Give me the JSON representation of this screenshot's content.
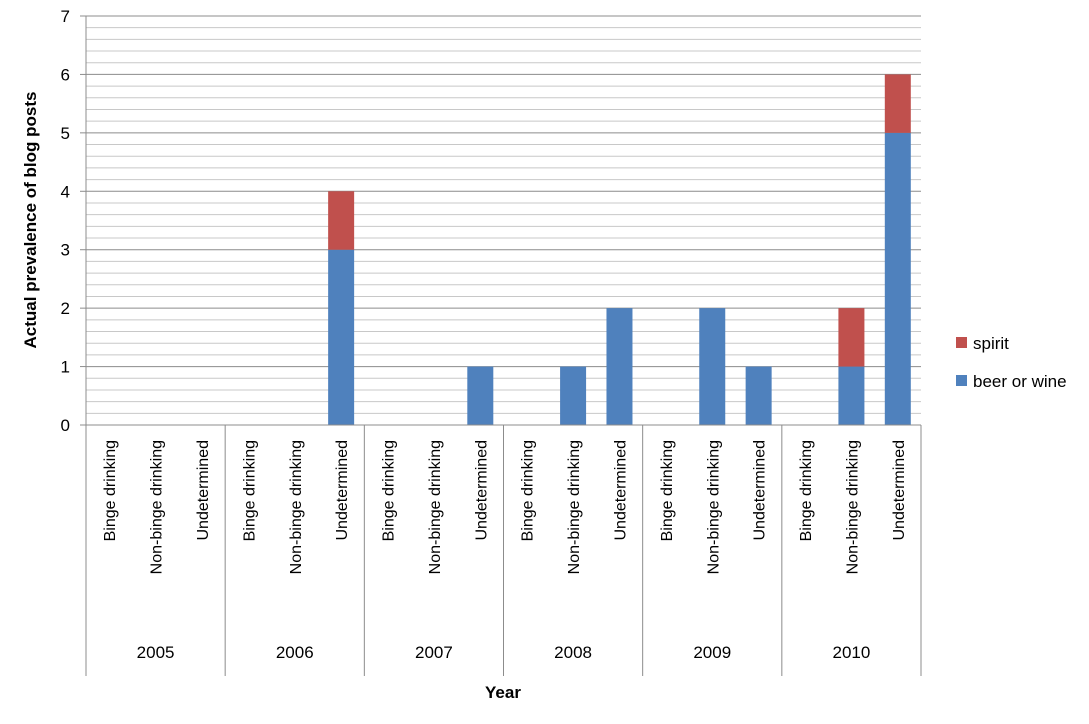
{
  "chart_data": {
    "type": "bar",
    "stacked": true,
    "title": "",
    "xlabel": "Year",
    "ylabel": "Actual prevalence of blog posts",
    "ylim": [
      0,
      7
    ],
    "y_major_ticks": [
      0,
      1,
      2,
      3,
      4,
      5,
      6,
      7
    ],
    "minor_gridline_step": 0.2,
    "grid": true,
    "legend_position": "right",
    "groups": [
      "2005",
      "2006",
      "2007",
      "2008",
      "2009",
      "2010"
    ],
    "subcategories": [
      "Binge drinking",
      "Non-binge drinking",
      "Undetermined"
    ],
    "series": [
      {
        "name": "beer or wine",
        "color": "#4f81bd",
        "values": [
          0,
          0,
          0,
          0,
          0,
          3,
          0,
          0,
          1,
          0,
          1,
          2,
          0,
          2,
          1,
          0,
          1,
          5
        ]
      },
      {
        "name": "spirit",
        "color": "#c0504d",
        "values": [
          0,
          0,
          0,
          0,
          0,
          1,
          0,
          0,
          0,
          0,
          0,
          0,
          0,
          0,
          0,
          0,
          1,
          1
        ]
      }
    ],
    "legend_order": [
      "spirit",
      "beer or wine"
    ]
  }
}
